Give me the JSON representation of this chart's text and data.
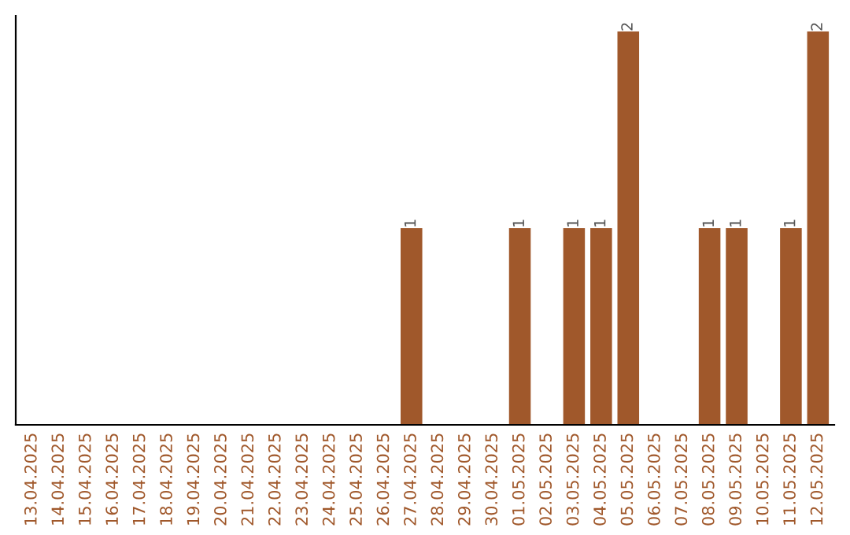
{
  "chart_data": {
    "type": "bar",
    "categories": [
      "13.04.2025",
      "14.04.2025",
      "15.04.2025",
      "16.04.2025",
      "17.04.2025",
      "18.04.2025",
      "19.04.2025",
      "20.04.2025",
      "21.04.2025",
      "22.04.2025",
      "23.04.2025",
      "24.04.2025",
      "25.04.2025",
      "26.04.2025",
      "27.04.2025",
      "28.04.2025",
      "29.04.2025",
      "30.04.2025",
      "01.05.2025",
      "02.05.2025",
      "03.05.2025",
      "04.05.2025",
      "05.05.2025",
      "06.05.2025",
      "07.05.2025",
      "08.05.2025",
      "09.05.2025",
      "10.05.2025",
      "11.05.2025",
      "12.05.2025"
    ],
    "values": [
      null,
      null,
      null,
      null,
      null,
      null,
      null,
      null,
      null,
      null,
      null,
      null,
      null,
      null,
      1,
      null,
      null,
      null,
      1,
      null,
      1,
      1,
      2,
      null,
      null,
      1,
      1,
      null,
      1,
      2
    ],
    "color": "#a0582b",
    "data_labels": true,
    "tick_labels": "x",
    "grid": false
  }
}
